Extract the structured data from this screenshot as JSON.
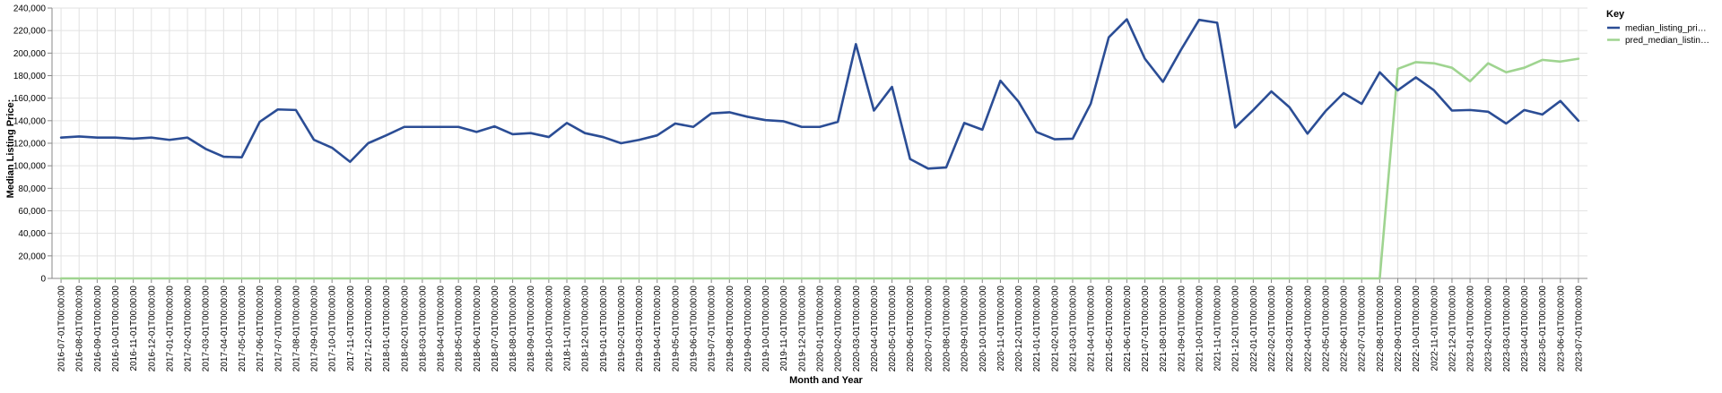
{
  "chart_data": {
    "type": "line",
    "title": "",
    "xlabel": "Month and Year",
    "ylabel": "Median Listing Price:",
    "ylim": [
      0,
      240000
    ],
    "y_ticks": [
      0,
      20000,
      40000,
      60000,
      80000,
      100000,
      120000,
      140000,
      160000,
      180000,
      200000,
      220000,
      240000
    ],
    "y_tick_labels": [
      "0",
      "20,000",
      "40,000",
      "60,000",
      "80,000",
      "100,000",
      "120,000",
      "140,000",
      "160,000",
      "180,000",
      "200,000",
      "220,000",
      "240,000"
    ],
    "grid": true,
    "legend": {
      "title": "Key",
      "position": "right",
      "labels": [
        "median_listing_pri…",
        "pred_median_listin…"
      ]
    },
    "x": [
      "2016-07-01T00:00:00",
      "2016-08-01T00:00:00",
      "2016-09-01T00:00:00",
      "2016-10-01T00:00:00",
      "2016-11-01T00:00:00",
      "2016-12-01T00:00:00",
      "2017-01-01T00:00:00",
      "2017-02-01T00:00:00",
      "2017-03-01T00:00:00",
      "2017-04-01T00:00:00",
      "2017-05-01T00:00:00",
      "2017-06-01T00:00:00",
      "2017-07-01T00:00:00",
      "2017-08-01T00:00:00",
      "2017-09-01T00:00:00",
      "2017-10-01T00:00:00",
      "2017-11-01T00:00:00",
      "2017-12-01T00:00:00",
      "2018-01-01T00:00:00",
      "2018-02-01T00:00:00",
      "2018-03-01T00:00:00",
      "2018-04-01T00:00:00",
      "2018-05-01T00:00:00",
      "2018-06-01T00:00:00",
      "2018-07-01T00:00:00",
      "2018-08-01T00:00:00",
      "2018-09-01T00:00:00",
      "2018-10-01T00:00:00",
      "2018-11-01T00:00:00",
      "2018-12-01T00:00:00",
      "2019-01-01T00:00:00",
      "2019-02-01T00:00:00",
      "2019-03-01T00:00:00",
      "2019-04-01T00:00:00",
      "2019-05-01T00:00:00",
      "2019-06-01T00:00:00",
      "2019-07-01T00:00:00",
      "2019-08-01T00:00:00",
      "2019-09-01T00:00:00",
      "2019-10-01T00:00:00",
      "2019-11-01T00:00:00",
      "2019-12-01T00:00:00",
      "2020-01-01T00:00:00",
      "2020-02-01T00:00:00",
      "2020-03-01T00:00:00",
      "2020-04-01T00:00:00",
      "2020-05-01T00:00:00",
      "2020-06-01T00:00:00",
      "2020-07-01T00:00:00",
      "2020-08-01T00:00:00",
      "2020-09-01T00:00:00",
      "2020-10-01T00:00:00",
      "2020-11-01T00:00:00",
      "2020-12-01T00:00:00",
      "2021-01-01T00:00:00",
      "2021-02-01T00:00:00",
      "2021-03-01T00:00:00",
      "2021-04-01T00:00:00",
      "2021-05-01T00:00:00",
      "2021-06-01T00:00:00",
      "2021-07-01T00:00:00",
      "2021-08-01T00:00:00",
      "2021-09-01T00:00:00",
      "2021-10-01T00:00:00",
      "2021-11-01T00:00:00",
      "2021-12-01T00:00:00",
      "2022-01-01T00:00:00",
      "2022-02-01T00:00:00",
      "2022-03-01T00:00:00",
      "2022-04-01T00:00:00",
      "2022-05-01T00:00:00",
      "2022-06-01T00:00:00",
      "2022-07-01T00:00:00",
      "2022-08-01T00:00:00",
      "2022-09-01T00:00:00",
      "2022-10-01T00:00:00",
      "2022-11-01T00:00:00",
      "2022-12-01T00:00:00",
      "2023-01-01T00:00:00",
      "2023-02-01T00:00:00",
      "2023-03-01T00:00:00",
      "2023-04-01T00:00:00",
      "2023-05-01T00:00:00",
      "2023-06-01T00:00:00",
      "2023-07-01T00:00:00"
    ],
    "series": [
      {
        "name": "median_listing_pri…",
        "color": "#2b4d95",
        "values": [
          125000,
          126000,
          125000,
          125000,
          124000,
          125000,
          123000,
          125000,
          115000,
          108000,
          107500,
          139000,
          150000,
          149500,
          123000,
          116000,
          103500,
          120000,
          127000,
          134500,
          134500,
          134500,
          134500,
          130000,
          135000,
          128000,
          129000,
          125500,
          138000,
          129000,
          125500,
          120000,
          123000,
          127000,
          137500,
          134500,
          146500,
          147500,
          143500,
          140500,
          139500,
          134500,
          134500,
          139000,
          208000,
          149000,
          170000,
          106000,
          97500,
          98500,
          138000,
          132000,
          175500,
          157000,
          130000,
          123500,
          124000,
          155000,
          214000,
          230000,
          195000,
          174500,
          203000,
          229500,
          227000,
          134000,
          149500,
          166000,
          152000,
          128500,
          148500,
          164500,
          155000,
          183000,
          167000,
          178500,
          167000,
          149000,
          149500,
          148000,
          137500,
          149500,
          145500,
          157500,
          140000
        ]
      },
      {
        "name": "pred_median_listin…",
        "color": "#9fd490",
        "values": [
          0,
          0,
          0,
          0,
          0,
          0,
          0,
          0,
          0,
          0,
          0,
          0,
          0,
          0,
          0,
          0,
          0,
          0,
          0,
          0,
          0,
          0,
          0,
          0,
          0,
          0,
          0,
          0,
          0,
          0,
          0,
          0,
          0,
          0,
          0,
          0,
          0,
          0,
          0,
          0,
          0,
          0,
          0,
          0,
          0,
          0,
          0,
          0,
          0,
          0,
          0,
          0,
          0,
          0,
          0,
          0,
          0,
          0,
          0,
          0,
          0,
          0,
          0,
          0,
          0,
          0,
          0,
          0,
          0,
          0,
          0,
          0,
          0,
          0,
          186000,
          192000,
          191000,
          187000,
          175000,
          191000,
          183000,
          187000,
          194000,
          192500,
          195000
        ]
      }
    ]
  }
}
